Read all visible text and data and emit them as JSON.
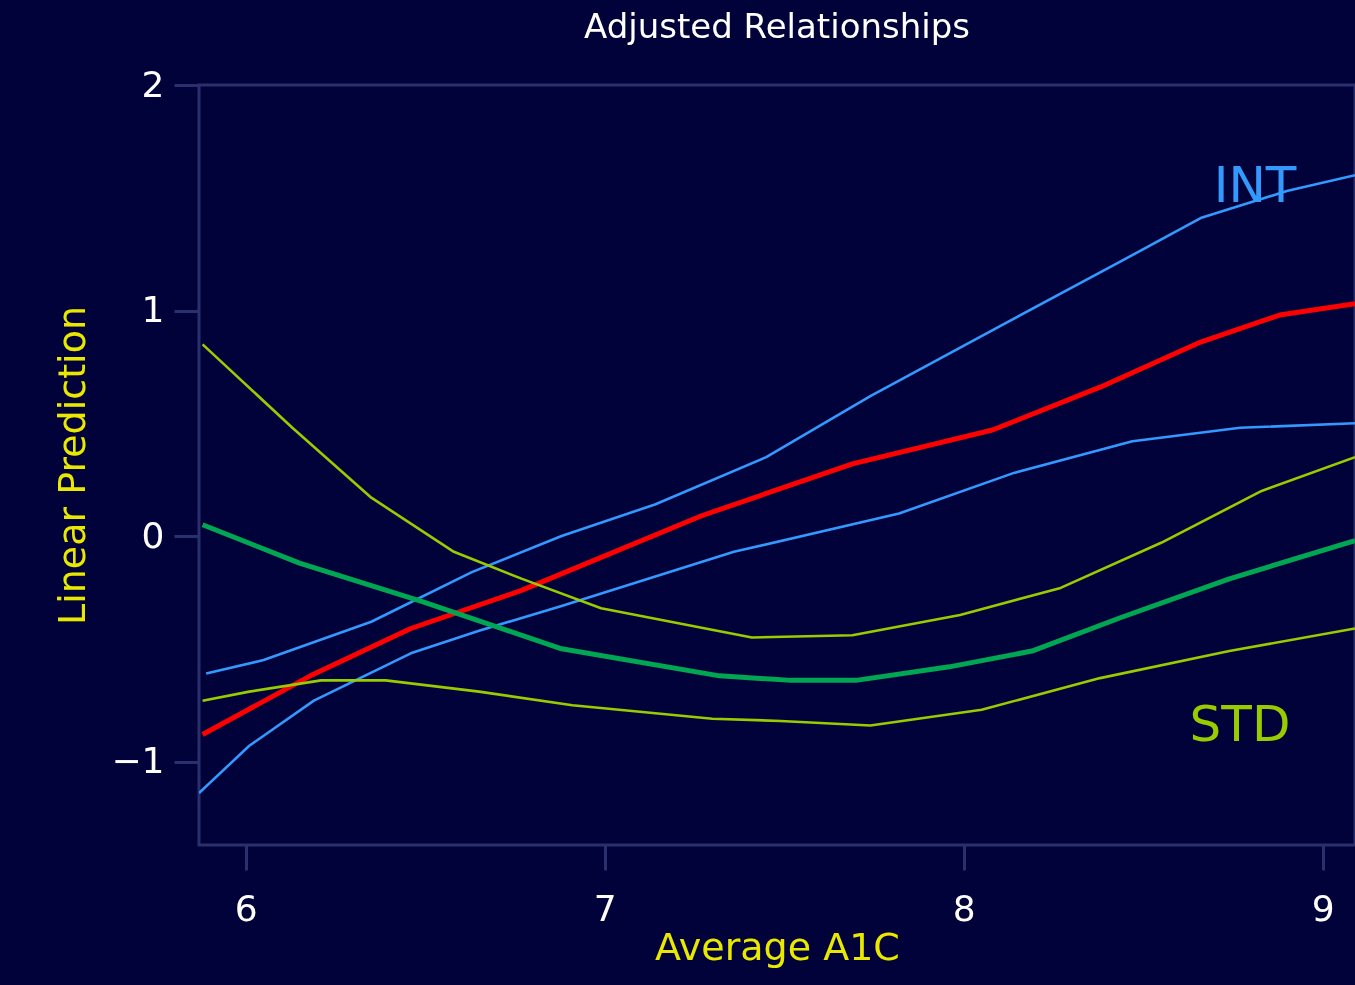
{
  "chart_data": {
    "type": "line",
    "title": "Adjusted Relationships",
    "xlabel": "Average A1C",
    "ylabel": "Linear Prediction",
    "xlim": [
      5.87,
      9.09
    ],
    "xticks": [
      6,
      7,
      8,
      9
    ],
    "ylim": [
      -1.37,
      2
    ],
    "yticks": [
      -1,
      0,
      1,
      2
    ],
    "grid": false,
    "legend": false,
    "marker": "none",
    "line_style": "solid",
    "series": [
      {
        "name": "INT",
        "color": "#3399ff",
        "x": [
          5.89,
          6.05,
          6.35,
          6.63,
          6.88,
          7.14,
          7.45,
          7.74,
          8.1,
          8.44,
          8.66,
          8.9,
          9.09
        ],
        "values": [
          -0.61,
          -0.55,
          -0.38,
          -0.16,
          0.0,
          0.14,
          0.35,
          0.62,
          0.93,
          1.22,
          1.41,
          1.53,
          1.6
        ]
      },
      {
        "color": "#3399ff",
        "x": [
          5.87,
          6.01,
          6.19,
          6.46,
          6.65,
          6.88,
          7.36,
          7.82,
          8.14,
          8.47,
          8.77,
          9.09
        ],
        "values": [
          -1.14,
          -0.93,
          -0.73,
          -0.52,
          -0.42,
          -0.31,
          -0.07,
          0.1,
          0.28,
          0.42,
          0.48,
          0.5
        ]
      },
      {
        "color": "#ff0000",
        "x": [
          5.88,
          6.18,
          6.46,
          6.77,
          7.27,
          7.69,
          8.08,
          8.38,
          8.66,
          8.88,
          9.09
        ],
        "values": [
          -0.88,
          -0.62,
          -0.41,
          -0.24,
          0.09,
          0.32,
          0.47,
          0.66,
          0.86,
          0.98,
          1.03
        ]
      },
      {
        "color": "#00a651",
        "x": [
          5.88,
          6.15,
          6.49,
          6.88,
          7.32,
          7.52,
          7.7,
          7.96,
          8.19,
          8.44,
          8.74,
          9.09
        ],
        "values": [
          0.05,
          -0.12,
          -0.29,
          -0.5,
          -0.62,
          -0.64,
          -0.64,
          -0.58,
          -0.51,
          -0.36,
          -0.19,
          -0.02
        ]
      },
      {
        "color": "#99cc00",
        "x": [
          5.88,
          6.13,
          6.35,
          6.58,
          6.77,
          6.99,
          7.41,
          7.69,
          7.99,
          8.27,
          8.55,
          8.83,
          9.09
        ],
        "values": [
          0.85,
          0.48,
          0.17,
          -0.07,
          -0.19,
          -0.32,
          -0.45,
          -0.44,
          -0.35,
          -0.23,
          -0.03,
          0.2,
          0.35
        ]
      },
      {
        "name": "STD",
        "color": "#99cc00",
        "x": [
          5.88,
          6.01,
          6.21,
          6.39,
          6.65,
          6.91,
          7.3,
          7.49,
          7.74,
          8.05,
          8.38,
          8.74,
          9.09
        ],
        "values": [
          -0.73,
          -0.69,
          -0.64,
          -0.64,
          -0.69,
          -0.75,
          -0.81,
          -0.82,
          -0.84,
          -0.77,
          -0.63,
          -0.51,
          -0.41
        ]
      }
    ]
  }
}
